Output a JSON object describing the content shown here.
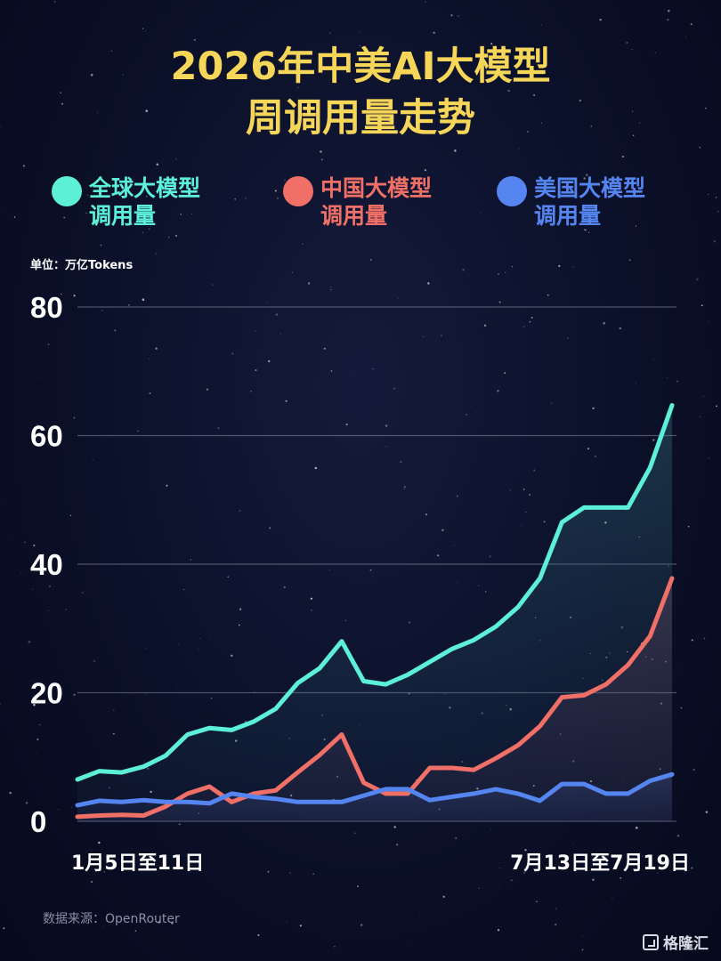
{
  "title_line1": "2026年中美AI大模型",
  "title_line2": "周调用量走势",
  "unit_label": "单位：万亿Tokens",
  "source_label": "数据来源：OpenRouter",
  "brand_label": "格隆汇",
  "colors": {
    "global": "#5cf0d8",
    "china": "#f07068",
    "us": "#5585f0",
    "title": "#f6d658"
  },
  "chart_data": {
    "type": "area",
    "title": "2026年中美AI大模型周调用量走势",
    "ylim": [
      0,
      80
    ],
    "yticks": [
      0,
      20,
      40,
      60,
      80
    ],
    "x_labels": [
      "1月5日至11日",
      "7月13日至7月19日"
    ],
    "grid": true,
    "legend_placement": "top",
    "series": [
      {
        "name": "全球大模型调用量",
        "color": "#5cf0d8",
        "values": [
          6.5,
          7.8,
          7.6,
          8.5,
          10.2,
          13.5,
          14.5,
          14.2,
          15.5,
          17.5,
          21.5,
          23.8,
          28,
          21.8,
          21.3,
          22.8,
          24.8,
          26.8,
          28.2,
          30.3,
          33.3,
          37.8,
          46.5,
          48.8,
          48.8,
          48.8,
          55,
          64.7
        ]
      },
      {
        "name": "中国大模型调用量",
        "color": "#f07068",
        "values": [
          0.7,
          0.9,
          1.0,
          0.9,
          2.3,
          4.3,
          5.4,
          3.0,
          4.3,
          4.8,
          7.6,
          10.3,
          13.5,
          6.0,
          4.3,
          4.3,
          8.3,
          8.3,
          8.0,
          9.8,
          11.8,
          14.8,
          19.3,
          19.6,
          21.3,
          24.3,
          28.8,
          37.8
        ]
      },
      {
        "name": "美国大模型调用量",
        "color": "#5585f0",
        "values": [
          2.5,
          3.2,
          3.0,
          3.3,
          3.0,
          3.0,
          2.8,
          4.3,
          3.8,
          3.5,
          3.0,
          3.0,
          3.0,
          4.0,
          5.0,
          5.0,
          3.3,
          3.8,
          4.3,
          5.0,
          4.3,
          3.2,
          5.8,
          5.8,
          4.3,
          4.3,
          6.3,
          7.3
        ]
      }
    ]
  }
}
